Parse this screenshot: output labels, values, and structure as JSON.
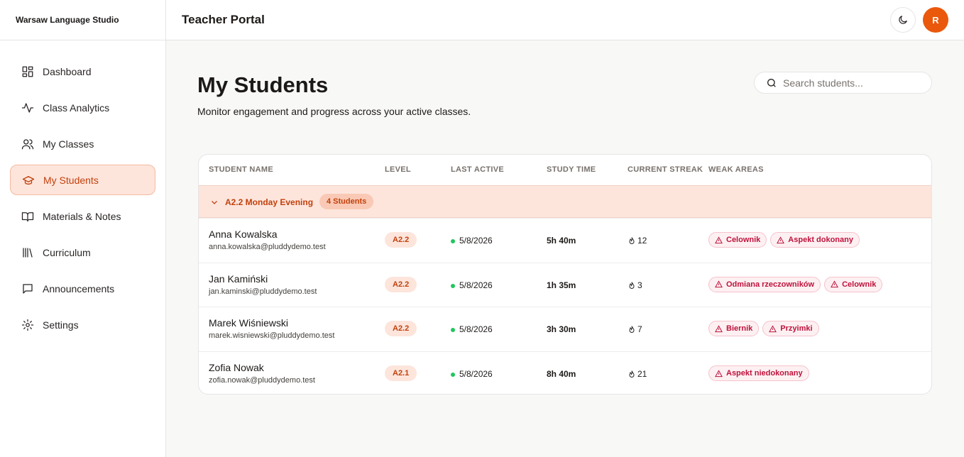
{
  "sidebar": {
    "brand": "Warsaw Language Studio",
    "nav": [
      "Dashboard",
      "Class Analytics",
      "My Classes",
      "My Students",
      "Materials & Notes",
      "Curriculum",
      "Announcements",
      "Settings"
    ]
  },
  "header": {
    "title": "Teacher Portal",
    "avatar": "R"
  },
  "page": {
    "title": "My Students",
    "subtitle": "Monitor engagement and progress across your active classes.",
    "search_placeholder": "Search students..."
  },
  "table": {
    "columns": [
      "STUDENT NAME",
      "LEVEL",
      "LAST ACTIVE",
      "STUDY TIME",
      "CURRENT STREAK",
      "WEAK AREAS"
    ],
    "group": {
      "name": "A2.2 Monday Evening",
      "count": "4 Students"
    },
    "rows": [
      {
        "name": "Anna Kowalska",
        "email": "anna.kowalska@pluddydemo.test",
        "level": "A2.2",
        "last_active": "5/8/2026",
        "study_time": "5h 40m",
        "streak": 12,
        "weak_areas": [
          "Celownik",
          "Aspekt dokonany"
        ]
      },
      {
        "name": "Jan Kamiński",
        "email": "jan.kaminski@pluddydemo.test",
        "level": "A2.2",
        "last_active": "5/8/2026",
        "study_time": "1h 35m",
        "streak": 3,
        "weak_areas": [
          "Odmiana rzeczowników",
          "Celownik"
        ]
      },
      {
        "name": "Marek Wiśniewski",
        "email": "marek.wisniewski@pluddydemo.test",
        "level": "A2.2",
        "last_active": "5/8/2026",
        "study_time": "3h 30m",
        "streak": 7,
        "weak_areas": [
          "Biernik",
          "Przyimki"
        ]
      },
      {
        "name": "Zofia Nowak",
        "email": "zofia.nowak@pluddydemo.test",
        "level": "A2.1",
        "last_active": "5/8/2026",
        "study_time": "8h 40m",
        "streak": 21,
        "weak_areas": [
          "Aspekt niedokonany"
        ]
      }
    ]
  }
}
